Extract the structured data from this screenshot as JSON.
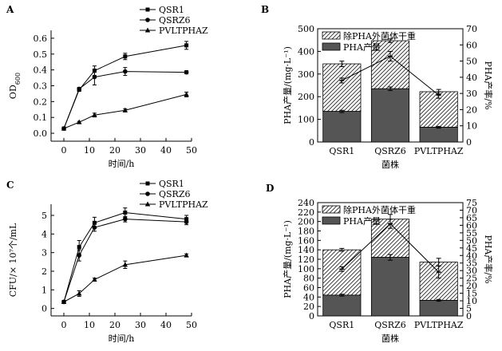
{
  "chart_data": [
    {
      "panel": "A",
      "type": "line",
      "xlabel": "时间/h",
      "ylabel": "OD",
      "ylabel_sub": "600",
      "x_ticks": [
        "0",
        "10",
        "20",
        "30",
        "40",
        "50"
      ],
      "y_ticks": [
        "0.0",
        "0.1",
        "0.2",
        "0.3",
        "0.4",
        "0.5",
        "0.6"
      ],
      "xlim": [
        -5,
        50
      ],
      "ylim": [
        -0.05,
        0.65
      ],
      "series": [
        {
          "name": "QSR1",
          "marker": "square",
          "x": [
            0,
            6,
            12,
            24,
            48
          ],
          "y": [
            0.03,
            0.275,
            0.395,
            0.485,
            0.555
          ],
          "err": [
            0.005,
            0.01,
            0.03,
            0.02,
            0.025
          ]
        },
        {
          "name": "QSRZ6",
          "marker": "circle",
          "x": [
            0,
            6,
            12,
            24,
            48
          ],
          "y": [
            0.03,
            0.28,
            0.355,
            0.39,
            0.385
          ],
          "err": [
            0.005,
            0.01,
            0.05,
            0.025,
            0.01
          ]
        },
        {
          "name": "PVLTPHAZ",
          "marker": "triangle",
          "x": [
            0,
            6,
            12,
            24,
            48
          ],
          "y": [
            0.03,
            0.07,
            0.115,
            0.145,
            0.245
          ],
          "err": [
            0.005,
            0.005,
            0.012,
            0.01,
            0.015
          ]
        }
      ]
    },
    {
      "panel": "B",
      "type": "bar",
      "xlabel": "菌株",
      "ylabel": "PHA产量/(mg·L⁻¹)",
      "y2label": "PHA产率/%",
      "categories": [
        "QSR1",
        "QSRZ6",
        "PVLTPHAZ"
      ],
      "y_ticks": [
        "0",
        "100",
        "200",
        "300",
        "400",
        "500"
      ],
      "y2_ticks": [
        "0",
        "10",
        "20",
        "30",
        "40",
        "50",
        "60",
        "70"
      ],
      "ylim": [
        0,
        500
      ],
      "y2lim": [
        0,
        70
      ],
      "legend": [
        "除PHA外菌体干重",
        "PHA产量"
      ],
      "stack_totals": [
        345,
        447,
        222
      ],
      "stack_totals_err": [
        12,
        8,
        10
      ],
      "pha_values": [
        135,
        235,
        65
      ],
      "pha_err": [
        5,
        8,
        4
      ],
      "rate_values": [
        38,
        53,
        29
      ],
      "rate_err": [
        1.5,
        3,
        2
      ]
    },
    {
      "panel": "C",
      "type": "line",
      "xlabel": "时间/h",
      "ylabel": "CFU/× 10⁷个/mL",
      "x_ticks": [
        "0",
        "10",
        "20",
        "30",
        "40",
        "50"
      ],
      "y_ticks": [
        "0",
        "1",
        "2",
        "3",
        "4",
        "5"
      ],
      "xlim": [
        -5,
        50
      ],
      "ylim": [
        -0.4,
        5.6
      ],
      "series": [
        {
          "name": "QSR1",
          "marker": "square",
          "x": [
            0,
            6,
            12,
            24,
            48
          ],
          "y": [
            0.35,
            3.3,
            4.6,
            5.15,
            4.8
          ],
          "err": [
            0.05,
            0.35,
            0.3,
            0.25,
            0.2
          ]
        },
        {
          "name": "QSRZ6",
          "marker": "circle",
          "x": [
            0,
            6,
            12,
            24,
            48
          ],
          "y": [
            0.35,
            2.85,
            4.35,
            4.8,
            4.65
          ],
          "err": [
            0.05,
            0.3,
            0.2,
            0.15,
            0.15
          ]
        },
        {
          "name": "PVLTPHAZ",
          "marker": "triangle",
          "x": [
            0,
            6,
            12,
            24,
            48
          ],
          "y": [
            0.35,
            0.8,
            1.55,
            2.35,
            2.85
          ],
          "err": [
            0.05,
            0.15,
            0.08,
            0.2,
            0.08
          ]
        }
      ]
    },
    {
      "panel": "D",
      "type": "bar",
      "xlabel": "菌株",
      "ylabel": "PHA产量/(mg·L⁻¹)",
      "y2label": "PHA产率/%",
      "categories": [
        "QSR1",
        "QSRZ6",
        "PVLTPHAZ"
      ],
      "y_ticks": [
        "0",
        "20",
        "40",
        "60",
        "80",
        "100",
        "120",
        "140",
        "160",
        "180",
        "200",
        "220",
        "240"
      ],
      "y2_ticks": [
        "0",
        "5",
        "10",
        "15",
        "20",
        "25",
        "30",
        "35",
        "40",
        "45",
        "50",
        "55",
        "60",
        "65",
        "70",
        "75"
      ],
      "ylim": [
        0,
        240
      ],
      "y2lim": [
        0,
        75
      ],
      "legend": [
        "除PHA外菌体干重",
        "PHA产量"
      ],
      "stack_totals": [
        140,
        205,
        114
      ],
      "stack_totals_err": [
        3,
        10,
        8
      ],
      "pha_values": [
        44,
        124,
        33
      ],
      "pha_err": [
        2,
        6,
        2
      ],
      "rate_values": [
        31,
        61,
        29
      ],
      "rate_err": [
        1.5,
        3,
        4
      ]
    }
  ]
}
